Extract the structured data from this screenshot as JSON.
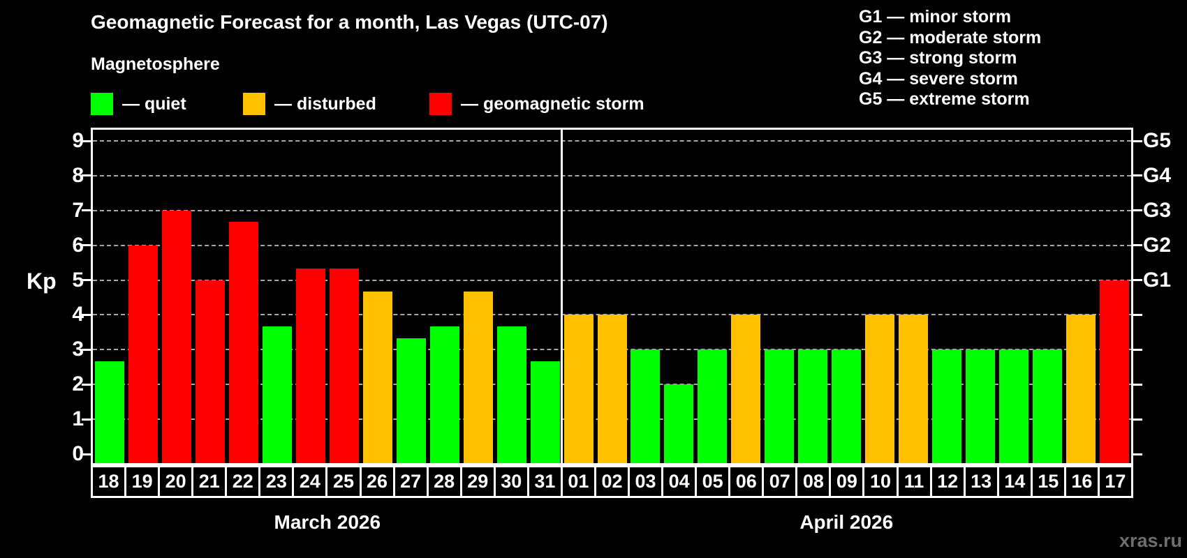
{
  "title": "Geomagnetic Forecast for a month, Las Vegas (UTC-07)",
  "subtitle": "Magnetosphere",
  "legend": {
    "quiet": {
      "label": "— quiet",
      "color": "#00ff00"
    },
    "disturbed": {
      "label": "— disturbed",
      "color": "#ffc000"
    },
    "storm": {
      "label": "— geomagnetic storm",
      "color": "#ff0000"
    }
  },
  "g_legend": [
    {
      "label": "G1 — minor storm"
    },
    {
      "label": "G2 — moderate storm"
    },
    {
      "label": "G3 — strong storm"
    },
    {
      "label": "G4 — severe storm"
    },
    {
      "label": "G5 — extreme storm"
    }
  ],
  "watermark": "xras.ru",
  "chart_data": {
    "type": "bar",
    "title": "Geomagnetic Forecast for a month, Las Vegas (UTC-07)",
    "ylabel": "Kp",
    "ylim": [
      0,
      9.3
    ],
    "yticks": [
      0,
      1,
      2,
      3,
      4,
      5,
      6,
      7,
      8,
      9
    ],
    "grid": "dashed horizontal at each Kp integer 1-9",
    "right_axis_labels": [
      {
        "label": "G5",
        "kp": 9
      },
      {
        "label": "G4",
        "kp": 8
      },
      {
        "label": "G3",
        "kp": 7
      },
      {
        "label": "G2",
        "kp": 6
      },
      {
        "label": "G1",
        "kp": 5
      }
    ],
    "months": [
      {
        "label": "March 2026",
        "days": 14
      },
      {
        "label": "April 2026",
        "days": 17
      }
    ],
    "series": [
      {
        "day": "18",
        "kp": 2.67,
        "status": "quiet"
      },
      {
        "day": "19",
        "kp": 6.0,
        "status": "storm"
      },
      {
        "day": "20",
        "kp": 7.0,
        "status": "storm"
      },
      {
        "day": "21",
        "kp": 5.0,
        "status": "storm"
      },
      {
        "day": "22",
        "kp": 6.67,
        "status": "storm"
      },
      {
        "day": "23",
        "kp": 3.67,
        "status": "quiet"
      },
      {
        "day": "24",
        "kp": 5.33,
        "status": "storm"
      },
      {
        "day": "25",
        "kp": 5.33,
        "status": "storm"
      },
      {
        "day": "26",
        "kp": 4.67,
        "status": "disturbed"
      },
      {
        "day": "27",
        "kp": 3.33,
        "status": "quiet"
      },
      {
        "day": "28",
        "kp": 3.67,
        "status": "quiet"
      },
      {
        "day": "29",
        "kp": 4.67,
        "status": "disturbed"
      },
      {
        "day": "30",
        "kp": 3.67,
        "status": "quiet"
      },
      {
        "day": "31",
        "kp": 2.67,
        "status": "quiet"
      },
      {
        "day": "01",
        "kp": 4.0,
        "status": "disturbed"
      },
      {
        "day": "02",
        "kp": 4.0,
        "status": "disturbed"
      },
      {
        "day": "03",
        "kp": 3.0,
        "status": "quiet"
      },
      {
        "day": "04",
        "kp": 2.0,
        "status": "quiet"
      },
      {
        "day": "05",
        "kp": 3.0,
        "status": "quiet"
      },
      {
        "day": "06",
        "kp": 4.0,
        "status": "disturbed"
      },
      {
        "day": "07",
        "kp": 3.0,
        "status": "quiet"
      },
      {
        "day": "08",
        "kp": 3.0,
        "status": "quiet"
      },
      {
        "day": "09",
        "kp": 3.0,
        "status": "quiet"
      },
      {
        "day": "10",
        "kp": 4.0,
        "status": "disturbed"
      },
      {
        "day": "11",
        "kp": 4.0,
        "status": "disturbed"
      },
      {
        "day": "12",
        "kp": 3.0,
        "status": "quiet"
      },
      {
        "day": "13",
        "kp": 3.0,
        "status": "quiet"
      },
      {
        "day": "14",
        "kp": 3.0,
        "status": "quiet"
      },
      {
        "day": "15",
        "kp": 3.0,
        "status": "quiet"
      },
      {
        "day": "16",
        "kp": 4.0,
        "status": "disturbed"
      },
      {
        "day": "17",
        "kp": 5.0,
        "status": "storm"
      }
    ]
  }
}
